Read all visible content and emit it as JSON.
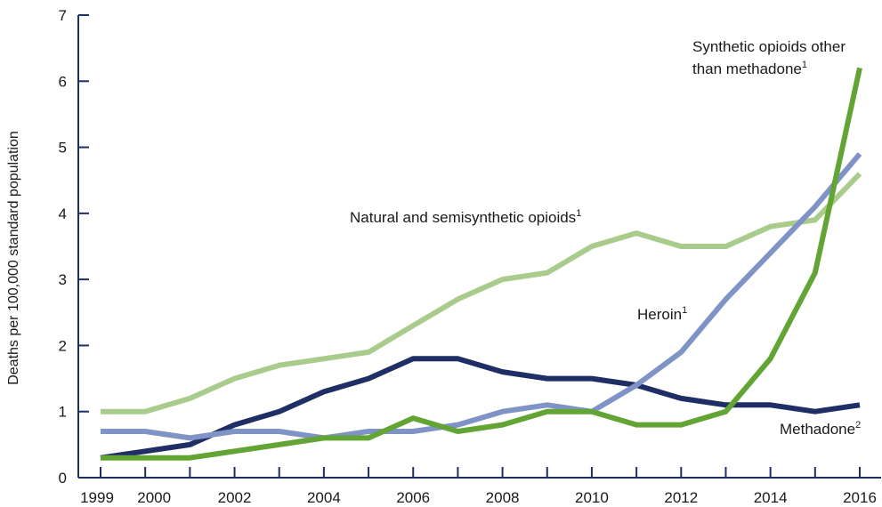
{
  "chart_data": {
    "type": "line",
    "title": "",
    "xlabel": "",
    "ylabel": "Deaths per 100,000 standard population",
    "x": [
      1999,
      2000,
      2001,
      2002,
      2003,
      2004,
      2005,
      2006,
      2007,
      2008,
      2009,
      2010,
      2011,
      2012,
      2013,
      2014,
      2015,
      2016
    ],
    "x_tick_labels": [
      "1999",
      "2000",
      "2002",
      "2004",
      "2006",
      "2008",
      "2010",
      "2012",
      "2014",
      "2016"
    ],
    "x_tick_values": [
      1999,
      2000,
      2002,
      2004,
      2006,
      2008,
      2010,
      2012,
      2014,
      2016
    ],
    "ylim": [
      0,
      7
    ],
    "y_ticks": [
      0,
      1,
      2,
      3,
      4,
      5,
      6,
      7
    ],
    "grid": false,
    "legend": "none",
    "series": [
      {
        "name": "Natural and semisynthetic opioids",
        "sup": "1",
        "color": "#a9cc8c",
        "values": [
          1.0,
          1.0,
          1.2,
          1.5,
          1.7,
          1.8,
          1.9,
          2.3,
          2.7,
          3.0,
          3.1,
          3.5,
          3.7,
          3.5,
          3.5,
          3.8,
          3.9,
          4.6
        ]
      },
      {
        "name": "Methadone",
        "sup": "2",
        "color": "#1f2f66",
        "values": [
          0.3,
          0.4,
          0.5,
          0.8,
          1.0,
          1.3,
          1.5,
          1.8,
          1.8,
          1.6,
          1.5,
          1.5,
          1.4,
          1.2,
          1.1,
          1.1,
          1.0,
          1.1
        ]
      },
      {
        "name": "Heroin",
        "sup": "1",
        "color": "#7f93c6",
        "values": [
          0.7,
          0.7,
          0.6,
          0.7,
          0.7,
          0.6,
          0.7,
          0.7,
          0.8,
          1.0,
          1.1,
          1.0,
          1.4,
          1.9,
          2.7,
          3.4,
          4.1,
          4.9
        ]
      },
      {
        "name": "Synthetic opioids other than methadone",
        "sup": "1",
        "color": "#63a535",
        "values": [
          0.3,
          0.3,
          0.3,
          0.4,
          0.5,
          0.6,
          0.6,
          0.9,
          0.7,
          0.8,
          1.0,
          1.0,
          0.8,
          0.8,
          1.0,
          1.8,
          3.1,
          6.2
        ]
      }
    ],
    "annotations": [
      {
        "series": "Natural and semisynthetic opioids",
        "lines": [
          "Natural and semisynthetic opioids"
        ],
        "sup": "1"
      },
      {
        "series": "Heroin",
        "lines": [
          "Heroin"
        ],
        "sup": "1"
      },
      {
        "series": "Methadone",
        "lines": [
          "Methadone"
        ],
        "sup": "2"
      },
      {
        "series": "Synthetic opioids other than methadone",
        "lines": [
          "Synthetic opioids other",
          "than methadone"
        ],
        "sup": "1"
      }
    ]
  }
}
